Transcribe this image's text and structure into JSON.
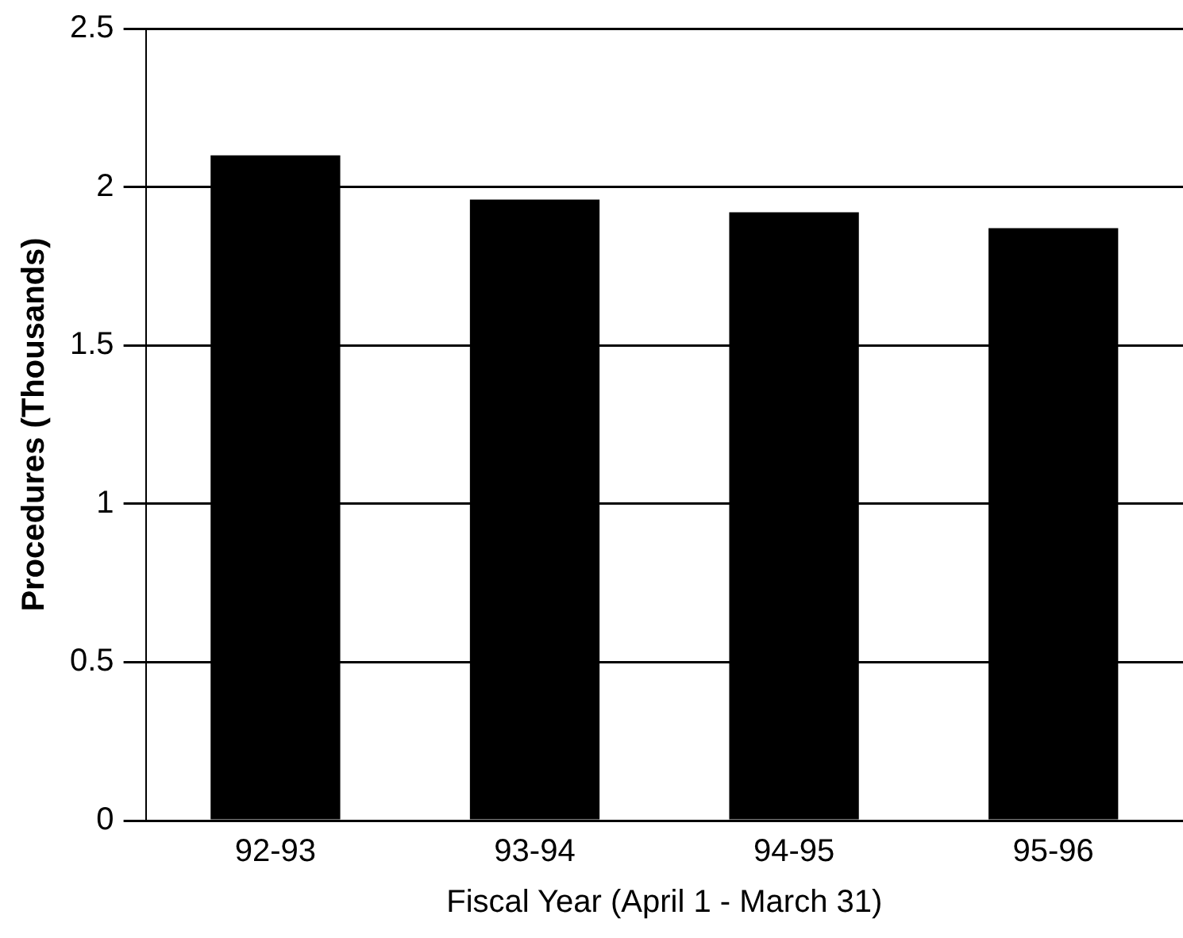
{
  "chart_data": {
    "type": "bar",
    "xlabel": "Fiscal Year (April 1 - March 31)",
    "ylabel": "Procedures (Thousands)",
    "categories": [
      "92-93",
      "93-94",
      "94-95",
      "95-96"
    ],
    "values": [
      2.1,
      1.96,
      1.92,
      1.87
    ],
    "color": "#000000",
    "ylim": [
      0,
      2.5
    ],
    "yticks": [
      0,
      0.5,
      1,
      1.5,
      2,
      2.5
    ],
    "grid": "y",
    "legend": false
  }
}
